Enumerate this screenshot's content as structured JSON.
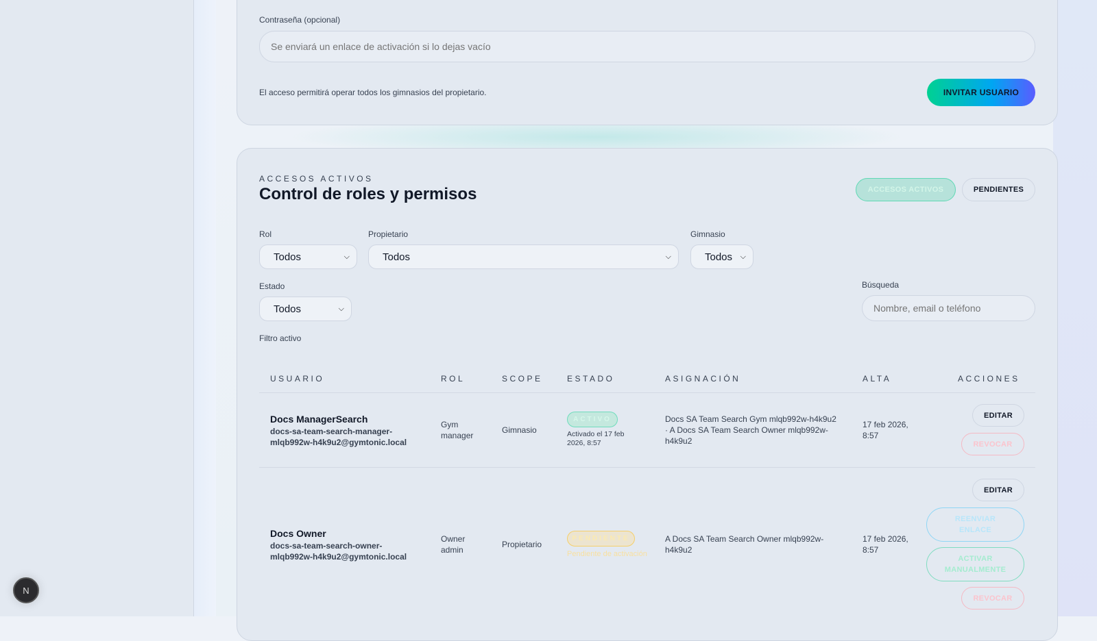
{
  "invite": {
    "password_label": "Contraseña (opcional)",
    "password_placeholder": "Se enviará un enlace de activación si lo dejas vacío",
    "note": "El acceso permitirá operar todos los gimnasios del propietario.",
    "invite_button": "INVITAR USUARIO"
  },
  "access": {
    "eyebrow": "ACCESOS ACTIVOS",
    "title": "Control de roles y permisos",
    "tabs": [
      {
        "label": "ACCESOS ACTIVOS",
        "active": true
      },
      {
        "label": "PENDIENTES",
        "active": false
      }
    ],
    "filters": {
      "rol_label": "Rol",
      "rol_value": "Todos",
      "owner_label": "Propietario",
      "owner_value": "Todos",
      "gym_label": "Gimnasio",
      "gym_value": "Todos",
      "estado_label": "Estado",
      "estado_value": "Todos",
      "search_label": "Búsqueda",
      "search_placeholder": "Nombre, email o teléfono",
      "active_filter": "Filtro activo"
    },
    "columns": [
      "USUARIO",
      "ROL",
      "SCOPE",
      "ESTADO",
      "ASIGNACIÓN",
      "ALTA",
      "ACCIONES"
    ],
    "rows": [
      {
        "name": "Docs ManagerSearch",
        "email": "docs-sa-team-search-manager-mlqb992w-h4k9u2@gymtonic.local",
        "role": "Gym manager",
        "scope": "Gimnasio",
        "status": "ACTIVO",
        "status_note": "Activado el 17 feb 2026, 8:57",
        "assignment": "Docs SA Team Search Gym mlqb992w-h4k9u2 · A Docs SA Team Search Owner mlqb992w-h4k9u2",
        "created": "17 feb 2026, 8:57",
        "actions": [
          "EDITAR",
          "REVOCAR"
        ]
      },
      {
        "name": "Docs Owner",
        "email": "docs-sa-team-search-owner-mlqb992w-h4k9u2@gymtonic.local",
        "role": "Owner admin",
        "scope": "Propietario",
        "status": "PENDIENTE",
        "status_note": "Pendiente de activación",
        "assignment": "A Docs SA Team Search Owner mlqb992w-h4k9u2",
        "created": "17 feb 2026, 8:57",
        "actions": [
          "EDITAR",
          "REENVIAR ENLACE",
          "ACTIVAR MANUALMENTE",
          "REVOCAR"
        ]
      }
    ]
  },
  "fab": {
    "icon": "next-logo-icon",
    "label": "N"
  },
  "colors": {
    "accent_green": "#00d49a",
    "accent_blue": "#5a5cff",
    "active": "#5fd8b4",
    "pending": "#f5cf6a",
    "danger": "#f7b3bf",
    "info": "#8fd6f5"
  }
}
